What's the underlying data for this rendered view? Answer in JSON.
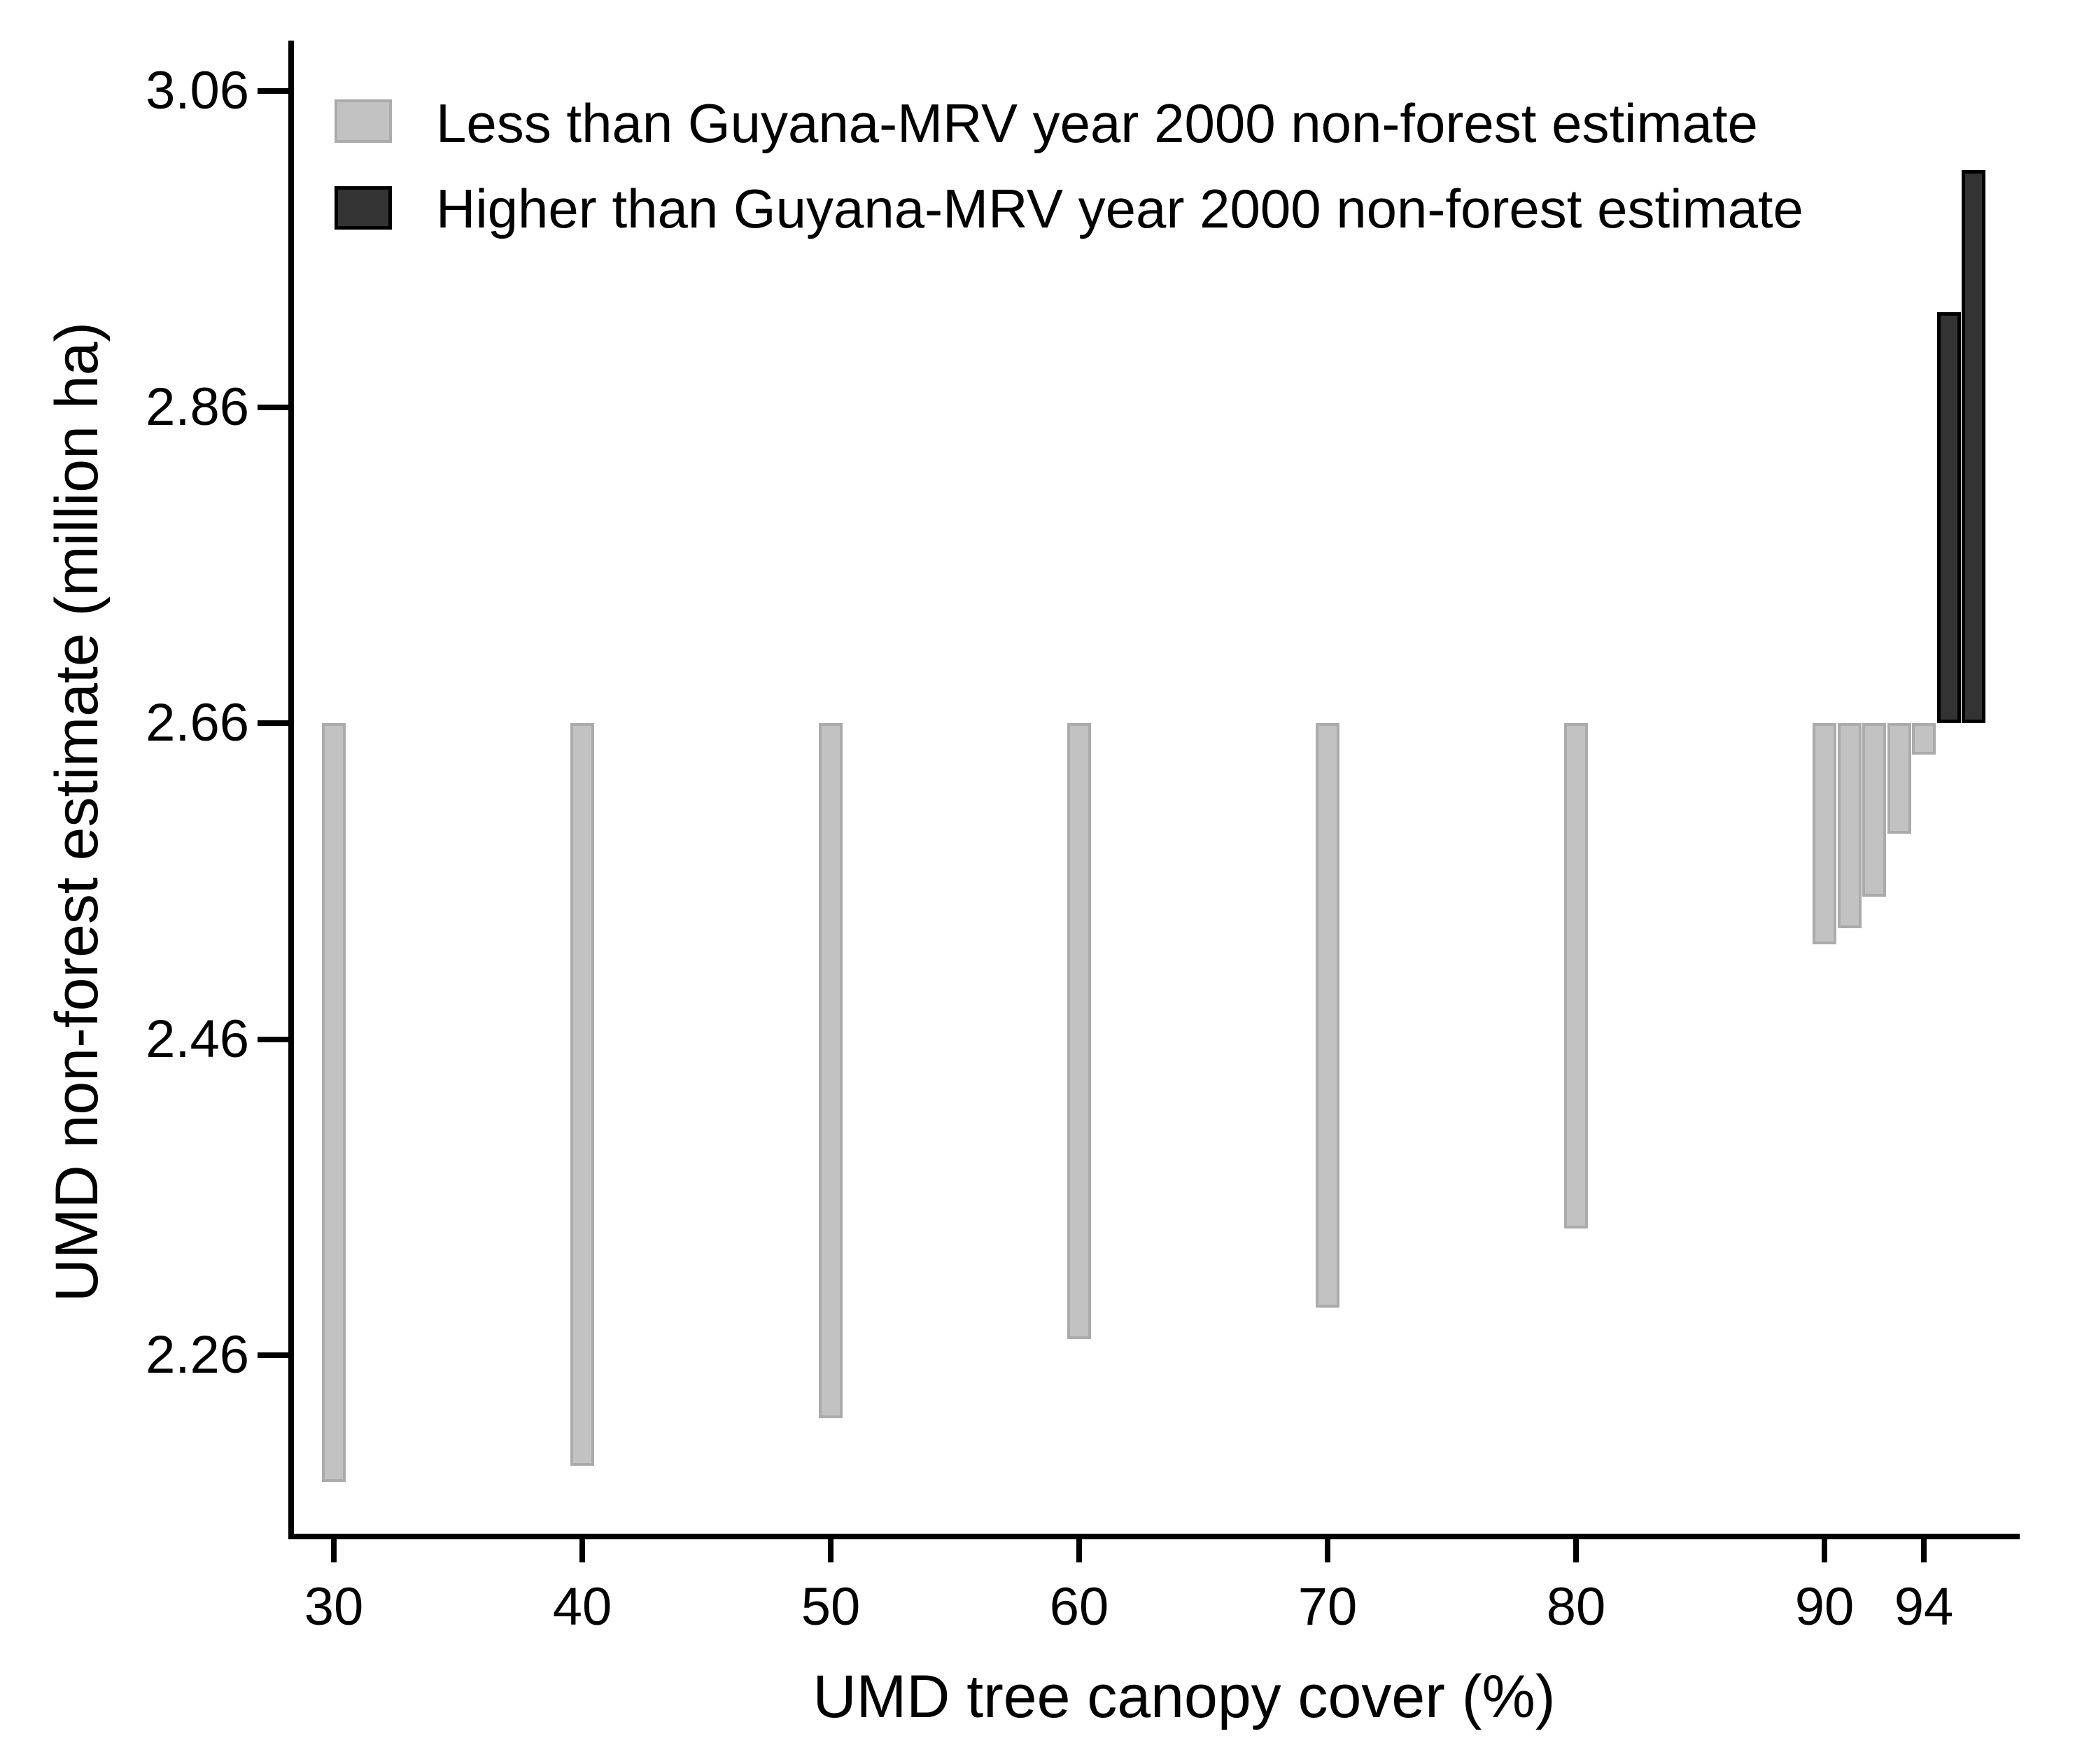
{
  "chart_data": {
    "type": "bar",
    "subtype": "floating-range-bars",
    "title": "",
    "xlabel": "UMD tree canopy cover (%)",
    "ylabel": "UMD non-forest estimate (million ha)",
    "baseline_value": 2.66,
    "grid": false,
    "legend_position": "top-left",
    "x_ticks": [
      {
        "value": 30,
        "label": "30"
      },
      {
        "value": 40,
        "label": "40"
      },
      {
        "value": 50,
        "label": "50"
      },
      {
        "value": 60,
        "label": "60"
      },
      {
        "value": 70,
        "label": "70"
      },
      {
        "value": 80,
        "label": "80"
      },
      {
        "value": 90,
        "label": "90"
      },
      {
        "value": 94,
        "label": "94"
      }
    ],
    "y_ticks": [
      {
        "value": 3.06,
        "label": "3.06"
      },
      {
        "value": 2.86,
        "label": "2.86"
      },
      {
        "value": 2.66,
        "label": "2.66"
      },
      {
        "value": 2.46,
        "label": "2.46"
      },
      {
        "value": 2.26,
        "label": "2.26"
      }
    ],
    "xlim": [
      28.2,
      98.3
    ],
    "ylim": [
      2.145,
      3.09
    ],
    "series": [
      {
        "key": "less",
        "name": "Less than Guyana-MRV year 2000 non-forest estimate",
        "fill": "#c2c2c2",
        "border": "#ababab",
        "bars": [
          {
            "x": 30,
            "y_from": 2.66,
            "y_to": 2.18
          },
          {
            "x": 40,
            "y_from": 2.66,
            "y_to": 2.19
          },
          {
            "x": 50,
            "y_from": 2.66,
            "y_to": 2.22
          },
          {
            "x": 60,
            "y_from": 2.66,
            "y_to": 2.27
          },
          {
            "x": 70,
            "y_from": 2.66,
            "y_to": 2.29
          },
          {
            "x": 80,
            "y_from": 2.66,
            "y_to": 2.34
          },
          {
            "x": 90,
            "y_from": 2.66,
            "y_to": 2.52
          },
          {
            "x": 91,
            "y_from": 2.66,
            "y_to": 2.53
          },
          {
            "x": 92,
            "y_from": 2.66,
            "y_to": 2.55
          },
          {
            "x": 93,
            "y_from": 2.66,
            "y_to": 2.59
          },
          {
            "x": 94,
            "y_from": 2.66,
            "y_to": 2.64
          }
        ]
      },
      {
        "key": "higher",
        "name": "Higher than Guyana-MRV year 2000 non-forest estimate",
        "fill": "#333333",
        "border": "#000000",
        "bars": [
          {
            "x": 95,
            "y_from": 2.66,
            "y_to": 2.92
          },
          {
            "x": 96,
            "y_from": 2.66,
            "y_to": 3.01
          }
        ]
      }
    ]
  }
}
